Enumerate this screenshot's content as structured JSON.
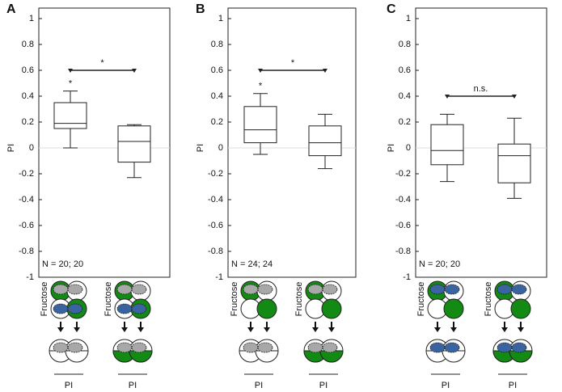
{
  "chart_data": [
    {
      "type": "box",
      "panel": "A",
      "ylabel": "PI",
      "ylim": [
        -1,
        1
      ],
      "yticks": [
        -1,
        -0.8,
        -0.6,
        -0.4,
        -0.2,
        0,
        0.2,
        0.4,
        0.6,
        0.8,
        1
      ],
      "boxes": [
        {
          "whislo": 0,
          "q1": 0.15,
          "med": 0.19,
          "q3": 0.35,
          "whishi": 0.44,
          "annotation": "*"
        },
        {
          "whislo": -0.23,
          "q1": -0.11,
          "med": 0.05,
          "q3": 0.17,
          "whishi": 0.18
        }
      ],
      "bracket": {
        "y": 0.6,
        "label": "*"
      },
      "n_label": "N = 20; 20",
      "schematics": [
        {
          "stimulus": "Fructose",
          "readout": "PI"
        },
        {
          "stimulus": "Fructose",
          "readout": "PI"
        }
      ]
    },
    {
      "type": "box",
      "panel": "B",
      "ylabel": "PI",
      "ylim": [
        -1,
        1
      ],
      "yticks": [
        -1,
        -0.8,
        -0.6,
        -0.4,
        -0.2,
        0,
        0.2,
        0.4,
        0.6,
        0.8,
        1
      ],
      "boxes": [
        {
          "whislo": -0.05,
          "q1": 0.04,
          "med": 0.14,
          "q3": 0.32,
          "whishi": 0.42,
          "annotation": "*"
        },
        {
          "whislo": -0.16,
          "q1": -0.06,
          "med": 0.04,
          "q3": 0.17,
          "whishi": 0.26
        }
      ],
      "bracket": {
        "y": 0.6,
        "label": "*"
      },
      "n_label": "N = 24; 24",
      "schematics": [
        {
          "stimulus": "Fructose",
          "readout": "PI"
        },
        {
          "stimulus": "Fructose",
          "readout": "PI"
        }
      ]
    },
    {
      "type": "box",
      "panel": "C",
      "ylabel": "PI",
      "ylim": [
        -1,
        1
      ],
      "yticks": [
        -1,
        -0.8,
        -0.6,
        -0.4,
        -0.2,
        0,
        0.2,
        0.4,
        0.6,
        0.8,
        1
      ],
      "boxes": [
        {
          "whislo": -0.26,
          "q1": -0.13,
          "med": -0.02,
          "q3": 0.18,
          "whishi": 0.26
        },
        {
          "whislo": -0.39,
          "q1": -0.27,
          "med": -0.06,
          "q3": 0.03,
          "whishi": 0.23
        }
      ],
      "bracket": {
        "y": 0.4,
        "label": "n.s."
      },
      "n_label": "N = 20; 20",
      "schematics": [
        {
          "stimulus": "Fructose",
          "readout": "PI"
        },
        {
          "stimulus": "Fructose",
          "readout": "PI"
        }
      ]
    }
  ]
}
